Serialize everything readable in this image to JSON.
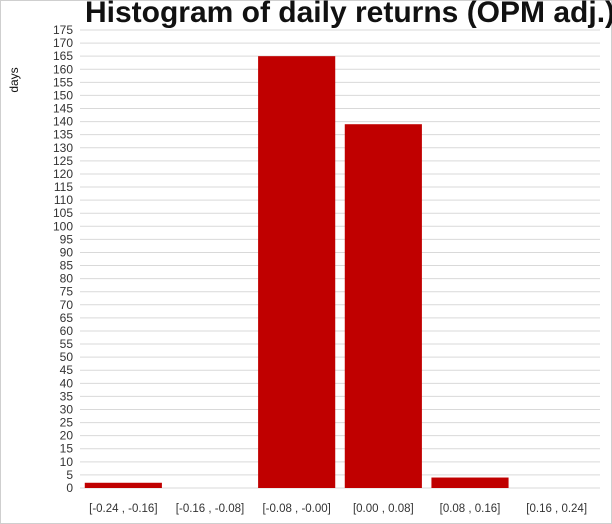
{
  "chart_data": {
    "type": "bar",
    "title": "Histogram of daily returns (OPM adj.)",
    "ylabel": "days",
    "xlabel": "",
    "ylim": [
      0,
      175
    ],
    "ytick_step": 5,
    "grid": true,
    "categories": [
      "[-0.24 , -0.16]",
      "[-0.16 , -0.08]",
      "[-0.08 , -0.00]",
      "[0.00 , 0.08]",
      "[0.08 , 0.16]",
      "[0.16 , 0.24]"
    ],
    "values": [
      2,
      0,
      165,
      139,
      4,
      0
    ],
    "bar_color": "#c00000"
  }
}
